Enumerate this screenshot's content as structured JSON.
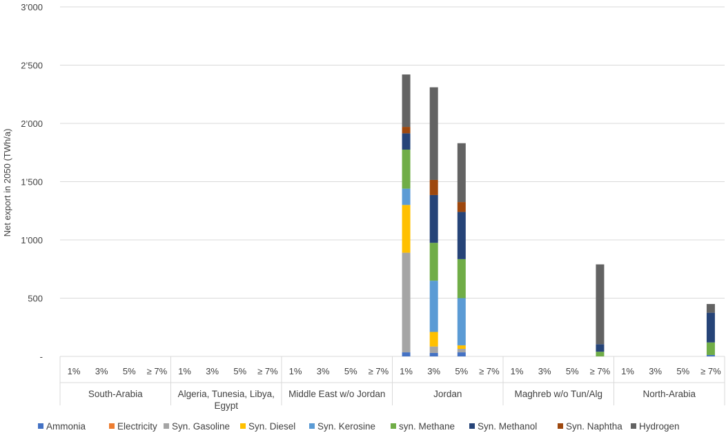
{
  "chart_data": {
    "type": "bar",
    "stacked": true,
    "ylabel": "Net export in 2050 (TWh/a)",
    "ylim": [
      0,
      3000
    ],
    "yticks": [
      0,
      500,
      1000,
      1500,
      2000,
      2500,
      3000
    ],
    "ytick_labels": [
      "-",
      "500",
      "1’000",
      "1’500",
      "2’000",
      "2’500",
      "3’000"
    ],
    "grid": true,
    "legend_position": "bottom",
    "groups": [
      "South-Arabia",
      "Algeria, Tunesia, Libya, Egypt",
      "Middle East w/o Jordan",
      "Jordan",
      "Maghreb w/o Tun/Alg",
      "North-Arabia"
    ],
    "group_label_lines": [
      [
        "South-Arabia"
      ],
      [
        "Algeria, Tunesia, Libya,",
        "Egypt"
      ],
      [
        "Middle East w/o Jordan"
      ],
      [
        "Jordan"
      ],
      [
        "Maghreb w/o Tun/Alg"
      ],
      [
        "North-Arabia"
      ]
    ],
    "sub_categories": [
      "1%",
      "3%",
      "5%",
      "≥ 7%"
    ],
    "series": [
      {
        "name": "Ammonia",
        "color": "#4472C4",
        "values": [
          [
            0,
            0,
            0,
            0
          ],
          [
            0,
            0,
            0,
            0
          ],
          [
            0,
            0,
            0,
            0
          ],
          [
            35,
            30,
            35,
            0
          ],
          [
            0,
            0,
            0,
            0
          ],
          [
            0,
            0,
            0,
            12
          ]
        ]
      },
      {
        "name": "Electricity",
        "color": "#ED7D31",
        "values": [
          [
            0,
            0,
            0,
            0
          ],
          [
            0,
            0,
            0,
            0
          ],
          [
            0,
            0,
            0,
            0
          ],
          [
            0,
            0,
            0,
            0
          ],
          [
            0,
            0,
            0,
            0
          ],
          [
            0,
            0,
            0,
            0
          ]
        ]
      },
      {
        "name": "Syn. Gasoline",
        "color": "#A5A5A5",
        "values": [
          [
            0,
            0,
            0,
            0
          ],
          [
            0,
            0,
            0,
            0
          ],
          [
            0,
            0,
            0,
            0
          ],
          [
            855,
            55,
            30,
            0
          ],
          [
            0,
            0,
            0,
            0
          ],
          [
            0,
            0,
            0,
            0
          ]
        ]
      },
      {
        "name": "Syn. Diesel",
        "color": "#FFC000",
        "values": [
          [
            0,
            0,
            0,
            0
          ],
          [
            0,
            0,
            0,
            0
          ],
          [
            0,
            0,
            0,
            0
          ],
          [
            410,
            125,
            30,
            0
          ],
          [
            0,
            0,
            0,
            0
          ],
          [
            0,
            0,
            0,
            0
          ]
        ]
      },
      {
        "name": "Syn. Kerosine",
        "color": "#5B9BD5",
        "values": [
          [
            0,
            0,
            0,
            0
          ],
          [
            0,
            0,
            0,
            0
          ],
          [
            0,
            0,
            0,
            0
          ],
          [
            140,
            440,
            405,
            0
          ],
          [
            0,
            0,
            0,
            0
          ],
          [
            0,
            0,
            0,
            0
          ]
        ]
      },
      {
        "name": "syn. Methane",
        "color": "#70AD47",
        "values": [
          [
            0,
            0,
            0,
            0
          ],
          [
            0,
            0,
            0,
            0
          ],
          [
            0,
            0,
            0,
            0
          ],
          [
            335,
            325,
            335,
            0
          ],
          [
            0,
            0,
            0,
            40
          ],
          [
            0,
            0,
            0,
            108
          ]
        ]
      },
      {
        "name": "Syn. Methanol",
        "color": "#264478",
        "values": [
          [
            0,
            0,
            0,
            0
          ],
          [
            0,
            0,
            0,
            0
          ],
          [
            0,
            0,
            0,
            0
          ],
          [
            140,
            410,
            405,
            0
          ],
          [
            0,
            0,
            0,
            65
          ],
          [
            0,
            0,
            0,
            255
          ]
        ]
      },
      {
        "name": "Syn. Naphtha",
        "color": "#9E480E",
        "values": [
          [
            0,
            0,
            0,
            0
          ],
          [
            0,
            0,
            0,
            0
          ],
          [
            0,
            0,
            0,
            0
          ],
          [
            55,
            130,
            85,
            0
          ],
          [
            0,
            0,
            0,
            0
          ],
          [
            0,
            0,
            0,
            0
          ]
        ]
      },
      {
        "name": "Hydrogen",
        "color": "#636363",
        "values": [
          [
            0,
            0,
            0,
            0
          ],
          [
            0,
            0,
            0,
            0
          ],
          [
            0,
            0,
            0,
            0
          ],
          [
            450,
            795,
            505,
            0
          ],
          [
            0,
            0,
            0,
            685
          ],
          [
            0,
            0,
            0,
            75
          ]
        ]
      }
    ]
  }
}
